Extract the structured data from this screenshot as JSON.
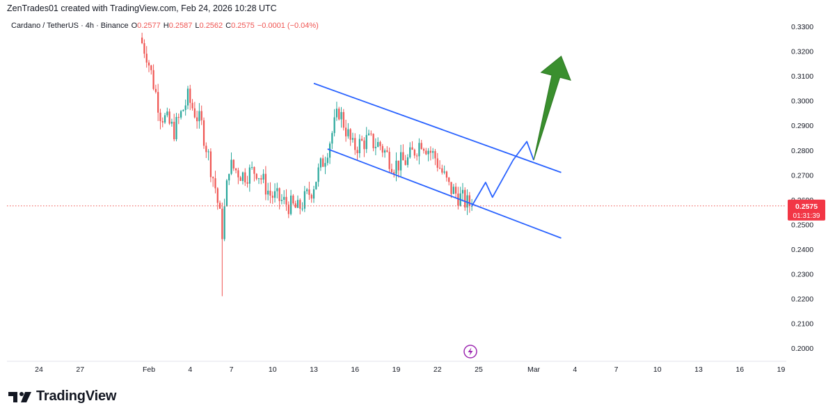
{
  "header": {
    "attribution": "ZenTrades01 created with TradingView.com, Feb 24, 2026 10:28 UTC"
  },
  "legend": {
    "symbol": "Cardano / TetherUS · 4h · Binance",
    "open_label": "O",
    "open": "0.2577",
    "high_label": "H",
    "high": "0.2587",
    "low_label": "L",
    "low": "0.2562",
    "close_label": "C",
    "close": "0.2575",
    "change": "−0.0001 (−0.04%)"
  },
  "price_tag": {
    "price": "0.2575",
    "countdown": "01:31:39",
    "color": "#f23645"
  },
  "brand": {
    "name": "TradingView"
  },
  "colors": {
    "up": "#26a69a",
    "down": "#ef5350",
    "trendline": "#2962ff",
    "projection": "#2962ff",
    "arrow": "#3a8f2e",
    "marker": "#9c27b0"
  },
  "icons": [
    "lightning-icon",
    "tradingview-logo-icon"
  ],
  "chart_data": {
    "type": "candlestick",
    "title": "",
    "xlabel": "",
    "ylabel": "",
    "ylim": [
      0.195,
      0.3345
    ],
    "y_ticks": [
      "0.3300",
      "0.3200",
      "0.3100",
      "0.3000",
      "0.2900",
      "0.2800",
      "0.2700",
      "0.2600",
      "0.2500",
      "0.2400",
      "0.2300",
      "0.2200",
      "0.2100",
      "0.2000"
    ],
    "x_ticks": [
      "24",
      "27",
      "Feb",
      "4",
      "7",
      "10",
      "13",
      "16",
      "19",
      "22",
      "25",
      "Mar",
      "4",
      "7",
      "10",
      "13",
      "16",
      "19"
    ],
    "x_tick_dates": [
      "2026-01-24",
      "2026-01-27",
      "2026-02-01",
      "2026-02-04",
      "2026-02-07",
      "2026-02-10",
      "2026-02-13",
      "2026-02-16",
      "2026-02-19",
      "2026-02-22",
      "2026-02-25",
      "2026-03-01",
      "2026-03-04",
      "2026-03-07",
      "2026-03-10",
      "2026-03-13",
      "2026-03-16",
      "2026-03-19"
    ],
    "series": [
      {
        "name": "Cardano / TetherUS",
        "points": [
          [
            "2026-01-31",
            0.332
          ],
          [
            "2026-02-01",
            0.319
          ],
          [
            "2026-02-02",
            0.295
          ],
          [
            "2026-02-03",
            0.288
          ],
          [
            "2026-02-04",
            0.301
          ],
          [
            "2026-02-05",
            0.29
          ],
          [
            "2026-02-06",
            0.265
          ],
          [
            "2026-02-06 12:00",
            0.247
          ],
          [
            "2026-02-07",
            0.274
          ],
          [
            "2026-02-08",
            0.27
          ],
          [
            "2026-02-09",
            0.272
          ],
          [
            "2026-02-10",
            0.262
          ],
          [
            "2026-02-11",
            0.259
          ],
          [
            "2026-02-12",
            0.256
          ],
          [
            "2026-02-13",
            0.264
          ],
          [
            "2026-02-14",
            0.278
          ],
          [
            "2026-02-15",
            0.296
          ],
          [
            "2026-02-16",
            0.281
          ],
          [
            "2026-02-17",
            0.284
          ],
          [
            "2026-02-18",
            0.282
          ],
          [
            "2026-02-19",
            0.274
          ],
          [
            "2026-02-20",
            0.276
          ],
          [
            "2026-02-21",
            0.284
          ],
          [
            "2026-02-22",
            0.277
          ],
          [
            "2026-02-23",
            0.265
          ],
          [
            "2026-02-24 12:00",
            0.2575
          ]
        ]
      }
    ],
    "extremes": {
      "high": 0.332,
      "low": 0.221
    },
    "last_price": 0.2575,
    "drawings": {
      "channel_upper": [
        [
          "2026-02-13",
          0.307
        ],
        [
          "2026-03-03",
          0.271
        ]
      ],
      "channel_lower": [
        [
          "2026-02-14",
          0.2805
        ],
        [
          "2026-03-03",
          0.2445
        ]
      ],
      "projection_path": [
        [
          "2026-02-24 12:00",
          0.2575
        ],
        [
          "2026-02-25 12:00",
          0.267
        ],
        [
          "2026-02-26",
          0.261
        ],
        [
          "2026-02-27 12:00",
          0.276
        ],
        [
          "2026-02-28 12:00",
          0.2835
        ],
        [
          "2026-03-01",
          0.276
        ]
      ],
      "arrow_from": [
        "2026-03-01",
        0.276
      ],
      "arrow_to": [
        "2026-03-03",
        0.318
      ]
    },
    "grid": false,
    "legend_placement": "top-left"
  }
}
